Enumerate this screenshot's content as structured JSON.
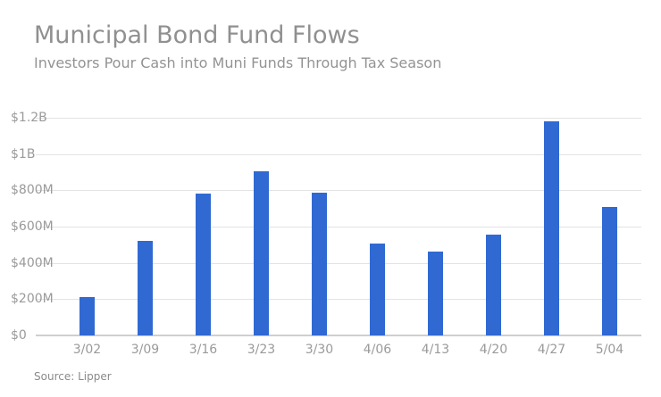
{
  "header": {
    "title": "Municipal Bond Fund Flows",
    "subtitle": "Investors Pour Cash into Muni Funds Through Tax Season"
  },
  "footer": {
    "source": "Source: Lipper"
  },
  "colors": {
    "bar": "#3069d2",
    "gridline": "#e3e3e3",
    "text": "#909090"
  },
  "chart_data": {
    "type": "bar",
    "title": "Municipal Bond Fund Flows",
    "subtitle": "Investors Pour Cash into Muni Funds Through Tax Season",
    "xlabel": "",
    "ylabel": "",
    "categories": [
      "3/02",
      "3/09",
      "3/16",
      "3/23",
      "3/30",
      "4/06",
      "4/13",
      "4/20",
      "4/27",
      "5/04"
    ],
    "values": [
      213,
      522,
      780,
      903,
      785,
      506,
      463,
      558,
      1178,
      709
    ],
    "units": "millions USD",
    "ylim": [
      0,
      1200
    ],
    "yticks": [
      0,
      200,
      400,
      600,
      800,
      1000,
      1200
    ],
    "ytick_labels": [
      "$0",
      "$200M",
      "$400M",
      "$600M",
      "$800M",
      "$1B",
      "$1.2B"
    ],
    "grid": true,
    "legend": null,
    "source": "Source: Lipper"
  }
}
